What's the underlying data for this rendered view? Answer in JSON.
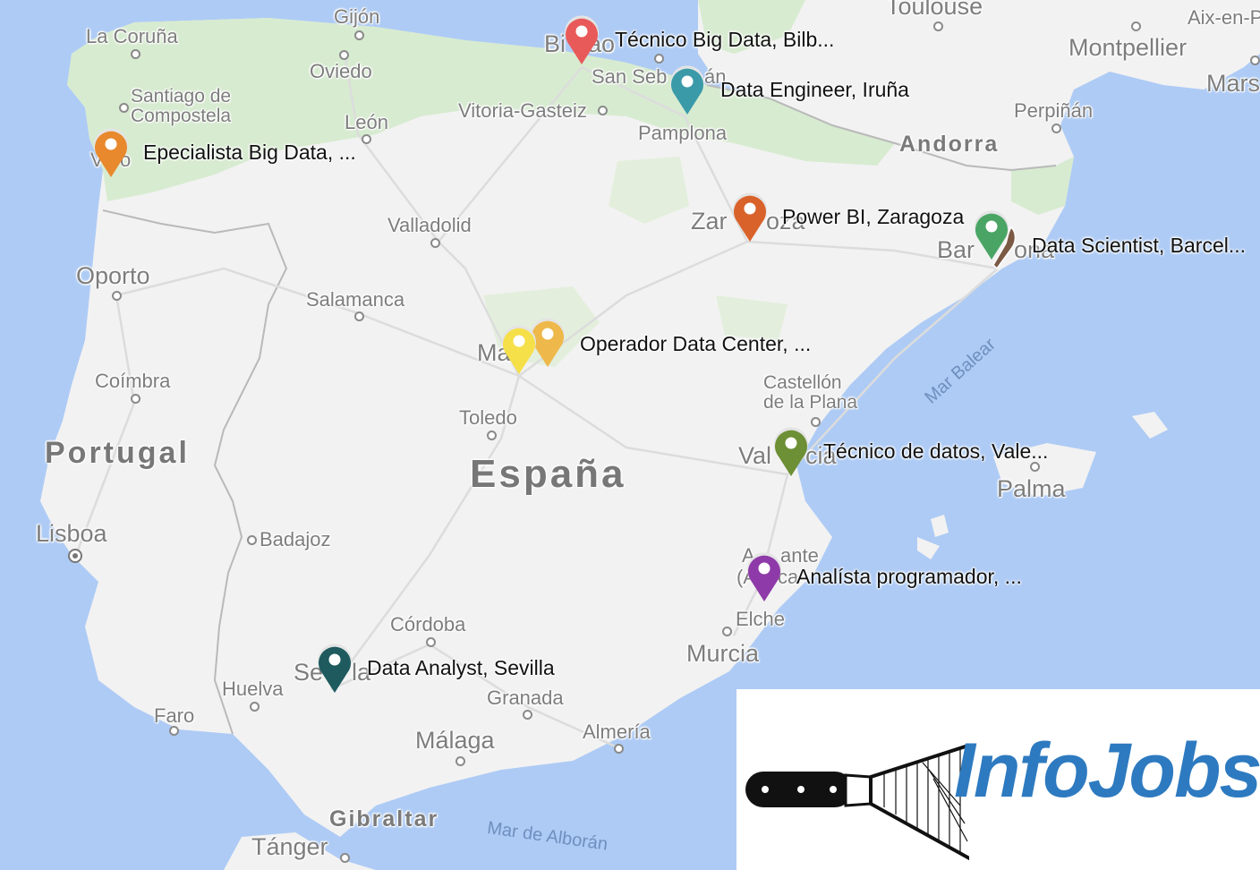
{
  "map": {
    "country_labels": {
      "spain": "España",
      "portugal": "Portugal"
    },
    "cities": {
      "la_coruna": "La Coruña",
      "gijon": "Gijón",
      "oviedo": "Oviedo",
      "santiago": "Santiago de\nCompostela",
      "leon": "León",
      "vitoria": "Vitoria-Gasteiz",
      "pamplona": "Pamplona",
      "toulouse": "Toulouse",
      "montpellier": "Montpellier",
      "aix": "Aix-en-P",
      "marseille": "Mars",
      "perpignan": "Perpiñán",
      "andorra": "Andorra",
      "valladolid": "Valladolid",
      "oporto": "Oporto",
      "salamanca": "Salamanca",
      "coimbra": "Coímbra",
      "toledo": "Toledo",
      "castellon": "Castellón\nde la Plana",
      "lisboa": "Lisboa",
      "badajoz": "Badajoz",
      "palma": "Palma",
      "elche": "Elche",
      "murcia": "Murcia",
      "cordoba": "Córdoba",
      "huelva": "Huelva",
      "granada": "Granada",
      "faro": "Faro",
      "malaga": "Málaga",
      "almeria": "Almería",
      "gibraltar": "Gibraltar",
      "tanger": "Tánger"
    },
    "partial_cities": {
      "bilbao": "Bi",
      "bilbao_2": "ao",
      "san_sebastian": "San Seb",
      "san_sebastian_2": "án",
      "vigo_1": "V",
      "vigo_2": "o",
      "zaragoza_1": "Zar",
      "zaragoza_2": "oza",
      "barcelona_1": "Bar",
      "barcelona_2": "ona",
      "madrid": "Ma",
      "valencia_1": "Val",
      "valencia_2": "cia",
      "alicante_1": "A",
      "alicante_2": "ante",
      "alicante_3": "(A",
      "alicante_4": "ca",
      "sevilla_1": "Se",
      "sevilla_2": "la"
    },
    "seas": {
      "balear": "Mar Balear",
      "alboran": "Mar de Alborán"
    }
  },
  "markers": [
    {
      "id": "bilbao",
      "label": "Técnico Big Data, Bilb...",
      "color": "#e85a5a"
    },
    {
      "id": "iruna",
      "label": "Data Engineer, Iruña",
      "color": "#3a9aa8"
    },
    {
      "id": "vigo",
      "label": "Epecialista Big Data, ...",
      "color": "#e8892d"
    },
    {
      "id": "zaragoza",
      "label": "Power BI, Zaragoza",
      "color": "#d9622b"
    },
    {
      "id": "barcelona",
      "label": "Data Scientist, Barcel...",
      "color": "#4aa565"
    },
    {
      "id": "barcelona_2",
      "label": "",
      "color": "#7b5a45"
    },
    {
      "id": "madrid",
      "label": "Operador Data Center, ...",
      "color": "#f6e04a"
    },
    {
      "id": "madrid_2",
      "label": "",
      "color": "#eeb84a"
    },
    {
      "id": "valencia",
      "label": "Técnico de datos, Vale...",
      "color": "#6d8f35"
    },
    {
      "id": "alicante",
      "label": "Analísta programador, ...",
      "color": "#8e3aa8"
    },
    {
      "id": "sevilla",
      "label": "Data Analyst, Sevilla",
      "color": "#1e5a5e"
    }
  ],
  "logo": {
    "text": "InfoJobs",
    "color": "#2d7ac0"
  },
  "colors": {
    "sea": "#aecbf5",
    "land": "#f2f2f2",
    "green_region": "#d7ebd0"
  }
}
